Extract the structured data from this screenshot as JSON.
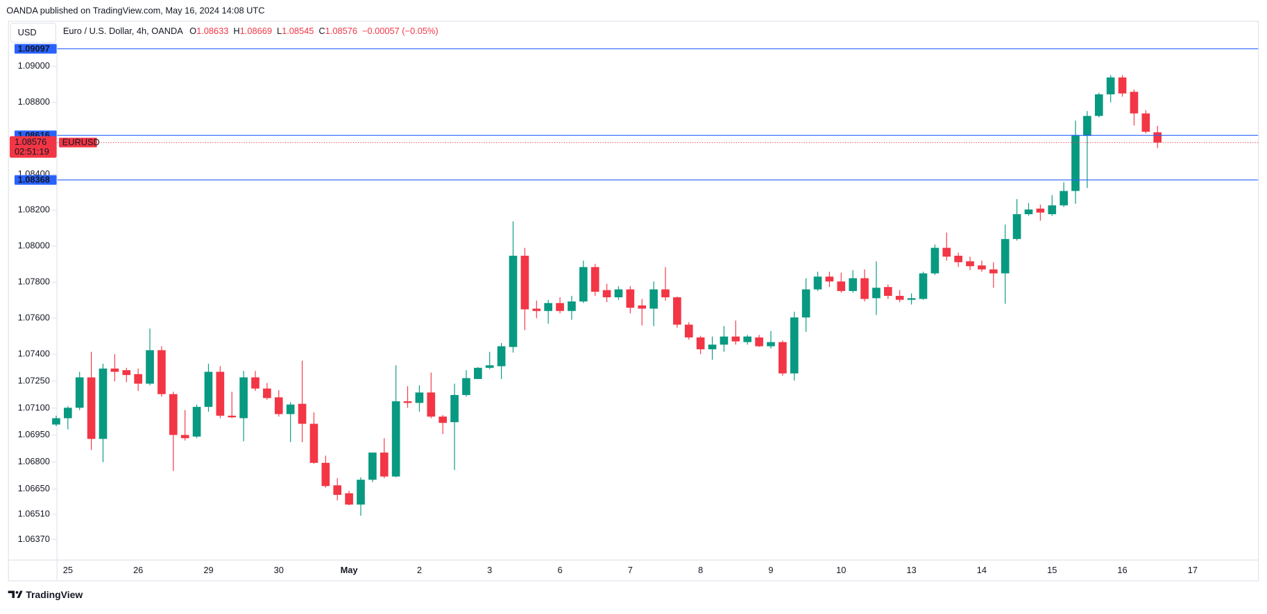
{
  "header": {
    "published": "OANDA published on TradingView.com, May 16, 2024 14:08 UTC",
    "symbol_box": "USD"
  },
  "footer": {
    "brand": "TradingView"
  },
  "chart_data": {
    "type": "candlestick",
    "legend": {
      "title": "Euro / U.S. Dollar, 4h, OANDA",
      "fields": [
        "O",
        "H",
        "L",
        "C"
      ],
      "change": "−0.00057 (−0.05%)"
    },
    "symbol": "EURUSD",
    "countdown": "02:51:19",
    "up_color": "#089981",
    "down_color": "#f23645",
    "hline_color": "#2962ff",
    "grid": false,
    "ylim": [
      1.06258,
      1.09124
    ],
    "yticks": [
      {
        "value": 1.09,
        "label": "1.09000"
      },
      {
        "value": 1.088,
        "label": "1.08800"
      },
      {
        "value": 1.084,
        "label": "1.08400"
      },
      {
        "value": 1.082,
        "label": "1.08200"
      },
      {
        "value": 1.08,
        "label": "1.08000"
      },
      {
        "value": 1.078,
        "label": "1.07800"
      },
      {
        "value": 1.076,
        "label": "1.07600"
      },
      {
        "value": 1.074,
        "label": "1.07400"
      },
      {
        "value": 1.0725,
        "label": "1.07250"
      },
      {
        "value": 1.071,
        "label": "1.07100"
      },
      {
        "value": 1.0695,
        "label": "1.06950"
      },
      {
        "value": 1.068,
        "label": "1.06800"
      },
      {
        "value": 1.0665,
        "label": "1.06650"
      },
      {
        "value": 1.0651,
        "label": "1.06510"
      },
      {
        "value": 1.0637,
        "label": "1.06370"
      }
    ],
    "hlines": [
      1.09097,
      1.08616,
      1.08368
    ],
    "categories": [
      null,
      "25",
      null,
      null,
      null,
      null,
      null,
      "26",
      null,
      null,
      null,
      null,
      null,
      "29",
      null,
      null,
      null,
      null,
      null,
      "30",
      null,
      null,
      null,
      null,
      null,
      "May",
      null,
      null,
      null,
      null,
      null,
      "2",
      null,
      null,
      null,
      null,
      null,
      "3",
      null,
      null,
      null,
      null,
      null,
      "6",
      null,
      null,
      null,
      null,
      null,
      "7",
      null,
      null,
      null,
      null,
      null,
      "8",
      null,
      null,
      null,
      null,
      null,
      "9",
      null,
      null,
      null,
      null,
      null,
      "10",
      null,
      null,
      null,
      null,
      null,
      "13",
      null,
      null,
      null,
      null,
      null,
      "14",
      null,
      null,
      null,
      null,
      null,
      "15",
      null,
      null,
      null,
      null,
      null,
      "16",
      null,
      null,
      null,
      null,
      null,
      "17"
    ],
    "open": [
      1.07009,
      1.07044,
      1.07102,
      1.07271,
      1.06929,
      1.0732,
      1.07311,
      1.07289,
      1.07236,
      1.07422,
      1.07178,
      1.06951,
      1.06942,
      1.07107,
      1.07302,
      1.07058,
      1.07044,
      1.07271,
      1.07209,
      1.0716,
      1.07067,
      1.07124,
      1.07013,
      1.06796,
      1.06671,
      1.06627,
      1.06564,
      1.06702,
      1.06853,
      1.0672,
      1.07138,
      1.07129,
      1.07187,
      1.07053,
      1.07022,
      1.07173,
      1.07262,
      1.07324,
      1.07333,
      1.0744,
      1.07947,
      1.07653,
      1.0764,
      1.07684,
      1.0764,
      1.07693,
      1.07884,
      1.07756,
      1.07716,
      1.0776,
      1.07671,
      1.07653,
      1.0776,
      1.07716,
      1.07564,
      1.07493,
      1.07427,
      1.07453,
      1.07498,
      1.07467,
      1.07493,
      1.07444,
      1.07467,
      1.07293,
      1.07604,
      1.0776,
      1.07831,
      1.07804,
      1.07751,
      1.07822,
      1.07711,
      1.07773,
      1.07724,
      1.07702,
      1.07707,
      1.07849,
      1.07991,
      1.07947,
      1.07916,
      1.07893,
      1.07871,
      1.07849,
      1.0804,
      1.08178,
      1.08209,
      1.08178,
      1.08227,
      1.08307,
      1.08613,
      1.08724,
      1.08844,
      1.08938,
      1.08858,
      1.08738,
      1.08633,
      null,
      null,
      null
    ],
    "high": [
      1.07058,
      1.07111,
      1.07302,
      1.07413,
      1.07347,
      1.074,
      1.07324,
      1.0732,
      1.07542,
      1.07444,
      1.07191,
      1.07089,
      1.0712,
      1.07347,
      1.07333,
      1.07191,
      1.07307,
      1.07307,
      1.0724,
      1.072,
      1.07133,
      1.07364,
      1.07076,
      1.06836,
      1.06711,
      1.0664,
      1.06716,
      1.06853,
      1.06933,
      1.07338,
      1.07222,
      1.07227,
      1.07298,
      1.07062,
      1.07236,
      1.07311,
      1.07329,
      1.07413,
      1.07462,
      1.08138,
      1.07991,
      1.07698,
      1.07702,
      1.07716,
      1.07724,
      1.0792,
      1.07902,
      1.07791,
      1.07778,
      1.07778,
      1.07707,
      1.07804,
      1.07884,
      1.0772,
      1.07578,
      1.07502,
      1.07498,
      1.07556,
      1.07587,
      1.07507,
      1.07507,
      1.07529,
      1.07476,
      1.07636,
      1.07822,
      1.07858,
      1.07858,
      1.07853,
      1.07867,
      1.07871,
      1.07916,
      1.07787,
      1.07756,
      1.07738,
      1.07858,
      1.08009,
      1.08076,
      1.07964,
      1.07942,
      1.0792,
      1.07911,
      1.0812,
      1.08262,
      1.0824,
      1.08231,
      1.08284,
      1.08356,
      1.08698,
      1.08751,
      1.08853,
      1.08951,
      1.08951,
      1.08871,
      1.08756,
      1.08669,
      null,
      null,
      null
    ],
    "low": [
      1.07,
      1.06982,
      1.07089,
      1.06867,
      1.068,
      1.07249,
      1.07244,
      1.07196,
      1.07227,
      1.07164,
      1.06751,
      1.0692,
      1.06933,
      1.0708,
      1.07044,
      1.07044,
      1.06916,
      1.07196,
      1.07147,
      1.07053,
      1.06911,
      1.06911,
      1.06791,
      1.06658,
      1.06587,
      1.0656,
      1.06502,
      1.06689,
      1.06711,
      1.06716,
      1.07102,
      1.0708,
      1.07044,
      1.06956,
      1.06756,
      1.07164,
      1.07262,
      1.07316,
      1.07262,
      1.07409,
      1.07533,
      1.076,
      1.07569,
      1.07627,
      1.07591,
      1.07684,
      1.07724,
      1.07689,
      1.07702,
      1.07627,
      1.0756,
      1.07556,
      1.07698,
      1.07547,
      1.0748,
      1.074,
      1.07369,
      1.07413,
      1.07453,
      1.07453,
      1.0744,
      1.07431,
      1.0728,
      1.07253,
      1.07524,
      1.07751,
      1.07773,
      1.07742,
      1.07742,
      1.07693,
      1.07618,
      1.07707,
      1.07689,
      1.07676,
      1.07702,
      1.0784,
      1.0792,
      1.07884,
      1.07867,
      1.07858,
      1.07769,
      1.0768,
      1.08031,
      1.08169,
      1.08142,
      1.08169,
      1.08218,
      1.08236,
      1.08324,
      1.08716,
      1.088,
      1.08831,
      1.08671,
      1.08627,
      1.08545,
      null,
      null,
      null
    ],
    "close": [
      1.07044,
      1.07102,
      1.07271,
      1.06929,
      1.0732,
      1.07302,
      1.07284,
      1.07236,
      1.07422,
      1.07178,
      1.06951,
      1.06933,
      1.07107,
      1.07302,
      1.07058,
      1.07049,
      1.07271,
      1.07209,
      1.07156,
      1.07067,
      1.0712,
      1.07013,
      1.06796,
      1.06667,
      1.06618,
      1.06564,
      1.06702,
      1.06853,
      1.0672,
      1.07138,
      1.07129,
      1.07187,
      1.07053,
      1.07018,
      1.07173,
      1.07267,
      1.07324,
      1.07338,
      1.07444,
      1.07947,
      1.07649,
      1.0764,
      1.07684,
      1.0764,
      1.07693,
      1.07884,
      1.07747,
      1.07716,
      1.0776,
      1.07658,
      1.07653,
      1.0776,
      1.07716,
      1.07564,
      1.07493,
      1.07427,
      1.07453,
      1.07498,
      1.07471,
      1.07498,
      1.07444,
      1.07467,
      1.07293,
      1.07604,
      1.0776,
      1.07831,
      1.07804,
      1.07751,
      1.07822,
      1.07707,
      1.07769,
      1.07724,
      1.07702,
      1.07711,
      1.07849,
      1.07991,
      1.07942,
      1.07911,
      1.07889,
      1.07871,
      1.07849,
      1.0804,
      1.08178,
      1.08204,
      1.08187,
      1.08227,
      1.08307,
      1.08618,
      1.08724,
      1.08844,
      1.08938,
      1.08849,
      1.08738,
      1.08636,
      1.08576,
      null,
      null,
      null
    ]
  }
}
